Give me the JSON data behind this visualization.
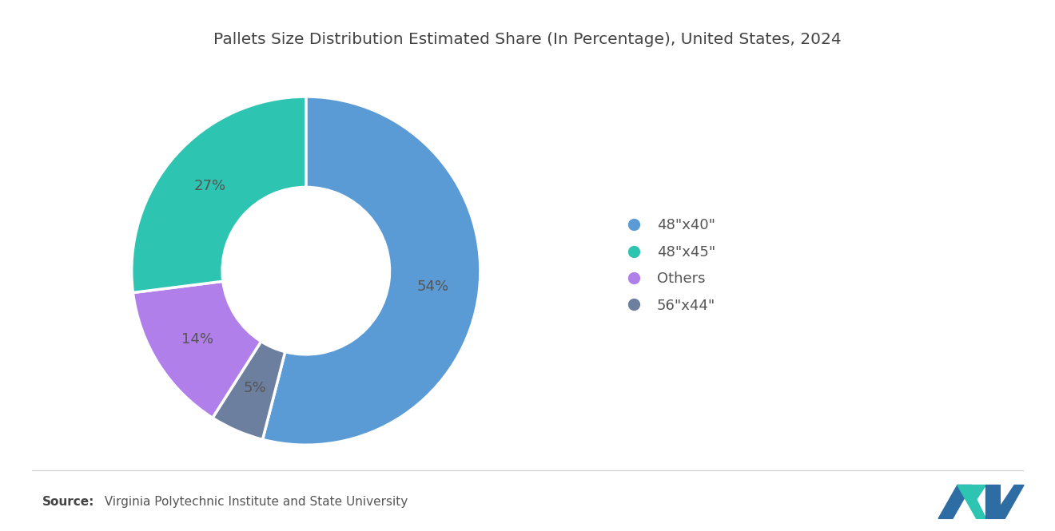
{
  "title": "Pallets Size Distribution Estimated Share (In Percentage), United States, 2024",
  "plot_values": [
    54,
    5,
    14,
    27
  ],
  "plot_labels": [
    "54%",
    "5%",
    "14%",
    "27%"
  ],
  "plot_colors": [
    "#5B9BD5",
    "#6C7F9E",
    "#B07FEA",
    "#2DC4B2"
  ],
  "legend_labels": [
    "48\"x40\"",
    "48\"x45\"",
    "Others",
    "56\"x44\""
  ],
  "legend_colors": [
    "#5B9BD5",
    "#2DC4B2",
    "#B07FEA",
    "#6C7F9E"
  ],
  "background_color": "#FFFFFF",
  "source_bold": "Source:",
  "source_rest": "  Virginia Polytechnic Institute and State University",
  "title_fontsize": 14.5,
  "label_fontsize": 13,
  "legend_fontsize": 13,
  "source_fontsize": 11,
  "text_color": "#555555"
}
